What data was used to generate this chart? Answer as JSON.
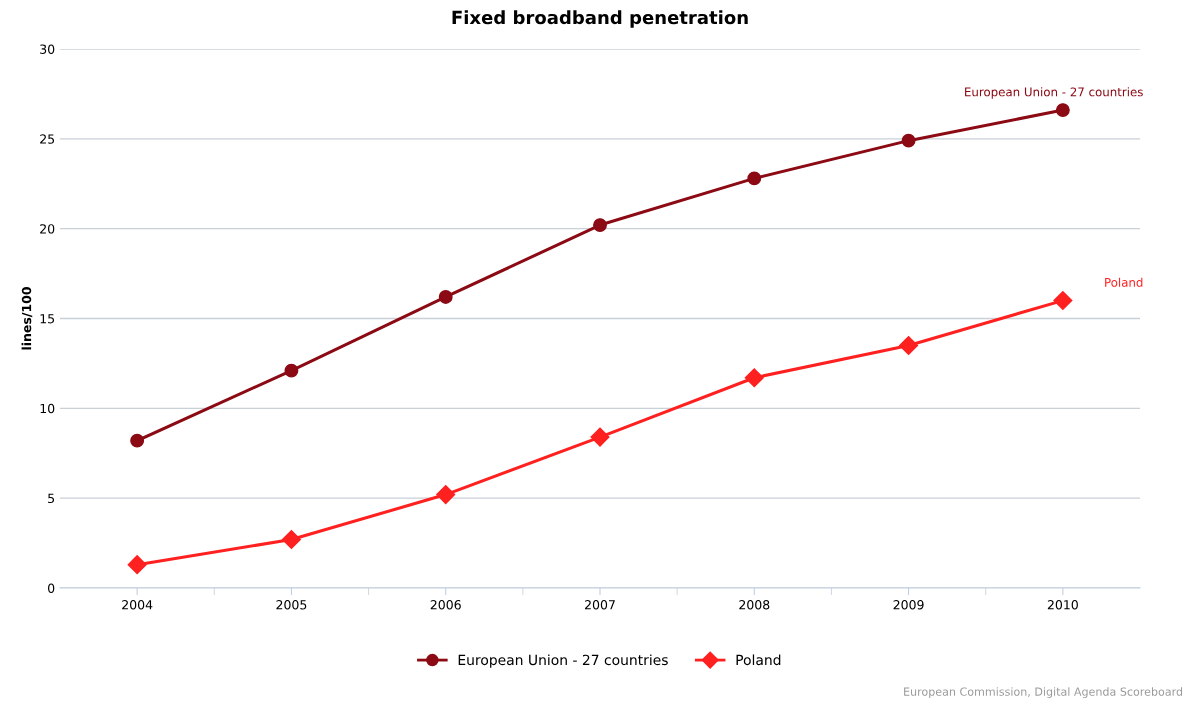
{
  "chart_data": {
    "type": "line",
    "title": "Fixed broadband penetration",
    "ylabel": "lines/100",
    "categories": [
      "2004",
      "2005",
      "2006",
      "2007",
      "2008",
      "2009",
      "2010"
    ],
    "series": [
      {
        "name": "European Union - 27 countries",
        "color": "#8b0a14",
        "marker": "circle",
        "values": [
          8.2,
          12.1,
          16.2,
          20.2,
          22.8,
          24.9,
          26.6
        ]
      },
      {
        "name": "Poland",
        "color": "#ff2020",
        "marker": "diamond",
        "values": [
          1.3,
          2.7,
          5.2,
          8.4,
          11.7,
          13.5,
          16.0
        ]
      }
    ],
    "ylim": [
      0,
      30
    ],
    "yticks": [
      0,
      5,
      10,
      15,
      20,
      25,
      30
    ],
    "grid": "y",
    "legend": "bottom",
    "annotations": [
      "European Commission, Digital Agenda Scoreboard"
    ]
  }
}
